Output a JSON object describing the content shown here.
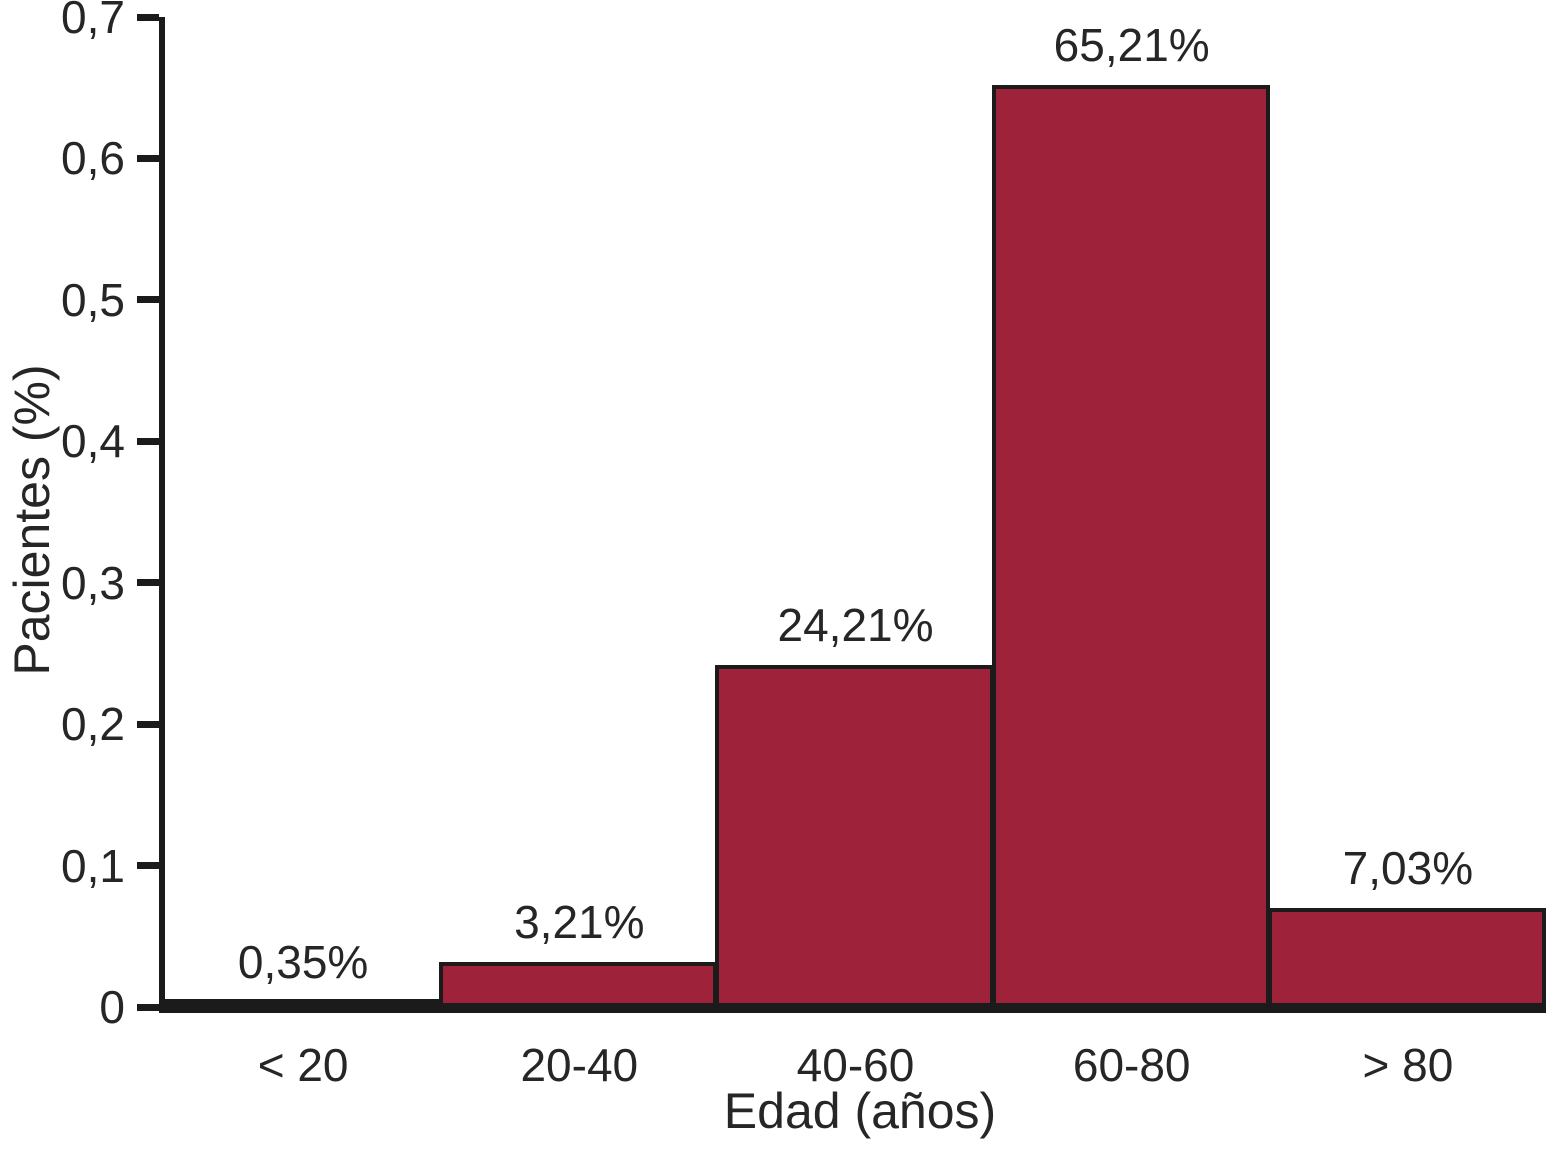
{
  "chart_data": {
    "type": "bar",
    "title": "",
    "xlabel": "Edad (años)",
    "ylabel": "Pacientes (%)",
    "categories": [
      "< 20",
      "20-40",
      "40-60",
      "60-80",
      "> 80"
    ],
    "values": [
      0.0035,
      0.0321,
      0.2421,
      0.6521,
      0.0703
    ],
    "bar_labels": [
      "0,35%",
      "3,21%",
      "24,21%",
      "65,21%",
      "7,03%"
    ],
    "ylim": [
      0,
      0.7
    ],
    "yticks": [
      0,
      0.1,
      0.2,
      0.3,
      0.4,
      0.5,
      0.6,
      0.7
    ],
    "ytick_labels": [
      "0",
      "0,1",
      "0,2",
      "0,3",
      "0,4",
      "0,5",
      "0,6",
      "0,7"
    ],
    "grid": false,
    "legend": false,
    "decimal_separator": ",",
    "bar_color": "#9f223b",
    "bar_border_color": "#1b1b1b",
    "axis_color": "#1b1b1b",
    "text_color": "#262626",
    "background_color": "#ffffff"
  }
}
